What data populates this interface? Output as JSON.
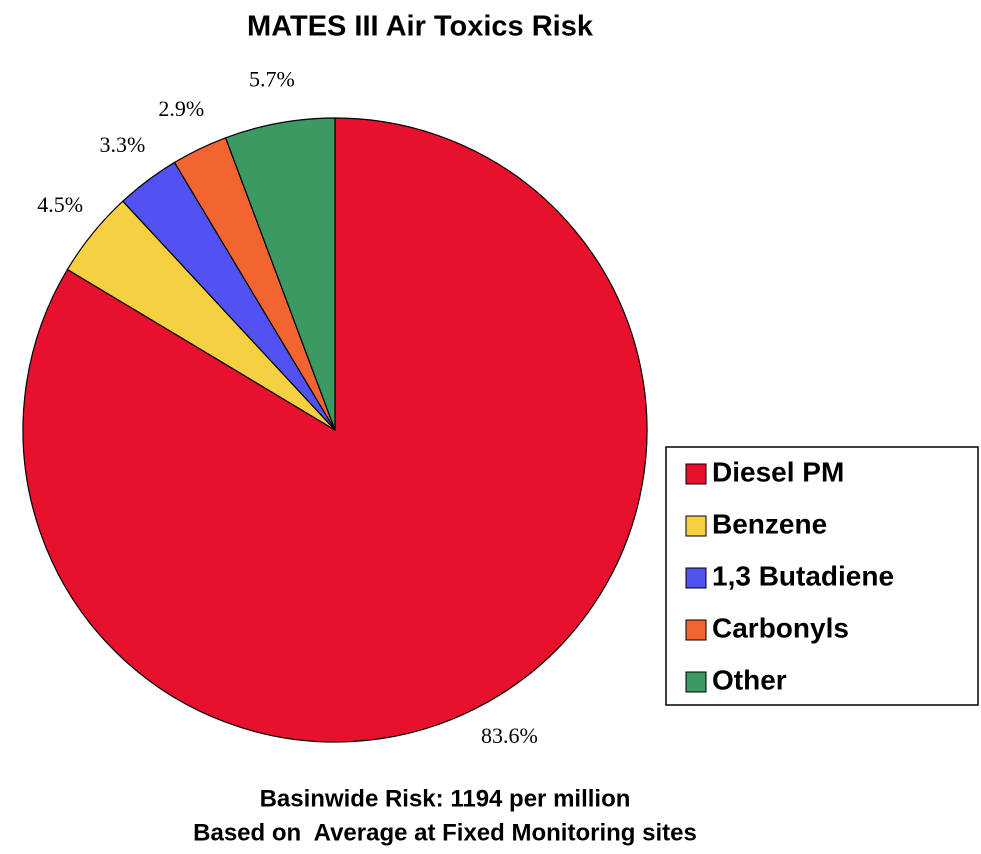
{
  "chart_data": {
    "type": "pie",
    "title": "MATES III Air Toxics Risk",
    "categories": [
      "Diesel PM",
      "Benzene",
      "1,3 Butadiene",
      "Carbonyls",
      "Other"
    ],
    "values": [
      83.6,
      4.5,
      3.3,
      2.9,
      5.7
    ],
    "value_labels": [
      "83.6%",
      "4.5%",
      "3.3%",
      "2.9%",
      "5.7%"
    ],
    "colors": [
      "#e8112d",
      "#f5d040",
      "#5252f2",
      "#f26430",
      "#3a9a62"
    ],
    "annotations": [
      "Basinwide Risk: 1194 per million",
      "Based on  Average at Fixed Monitoring sites"
    ]
  }
}
